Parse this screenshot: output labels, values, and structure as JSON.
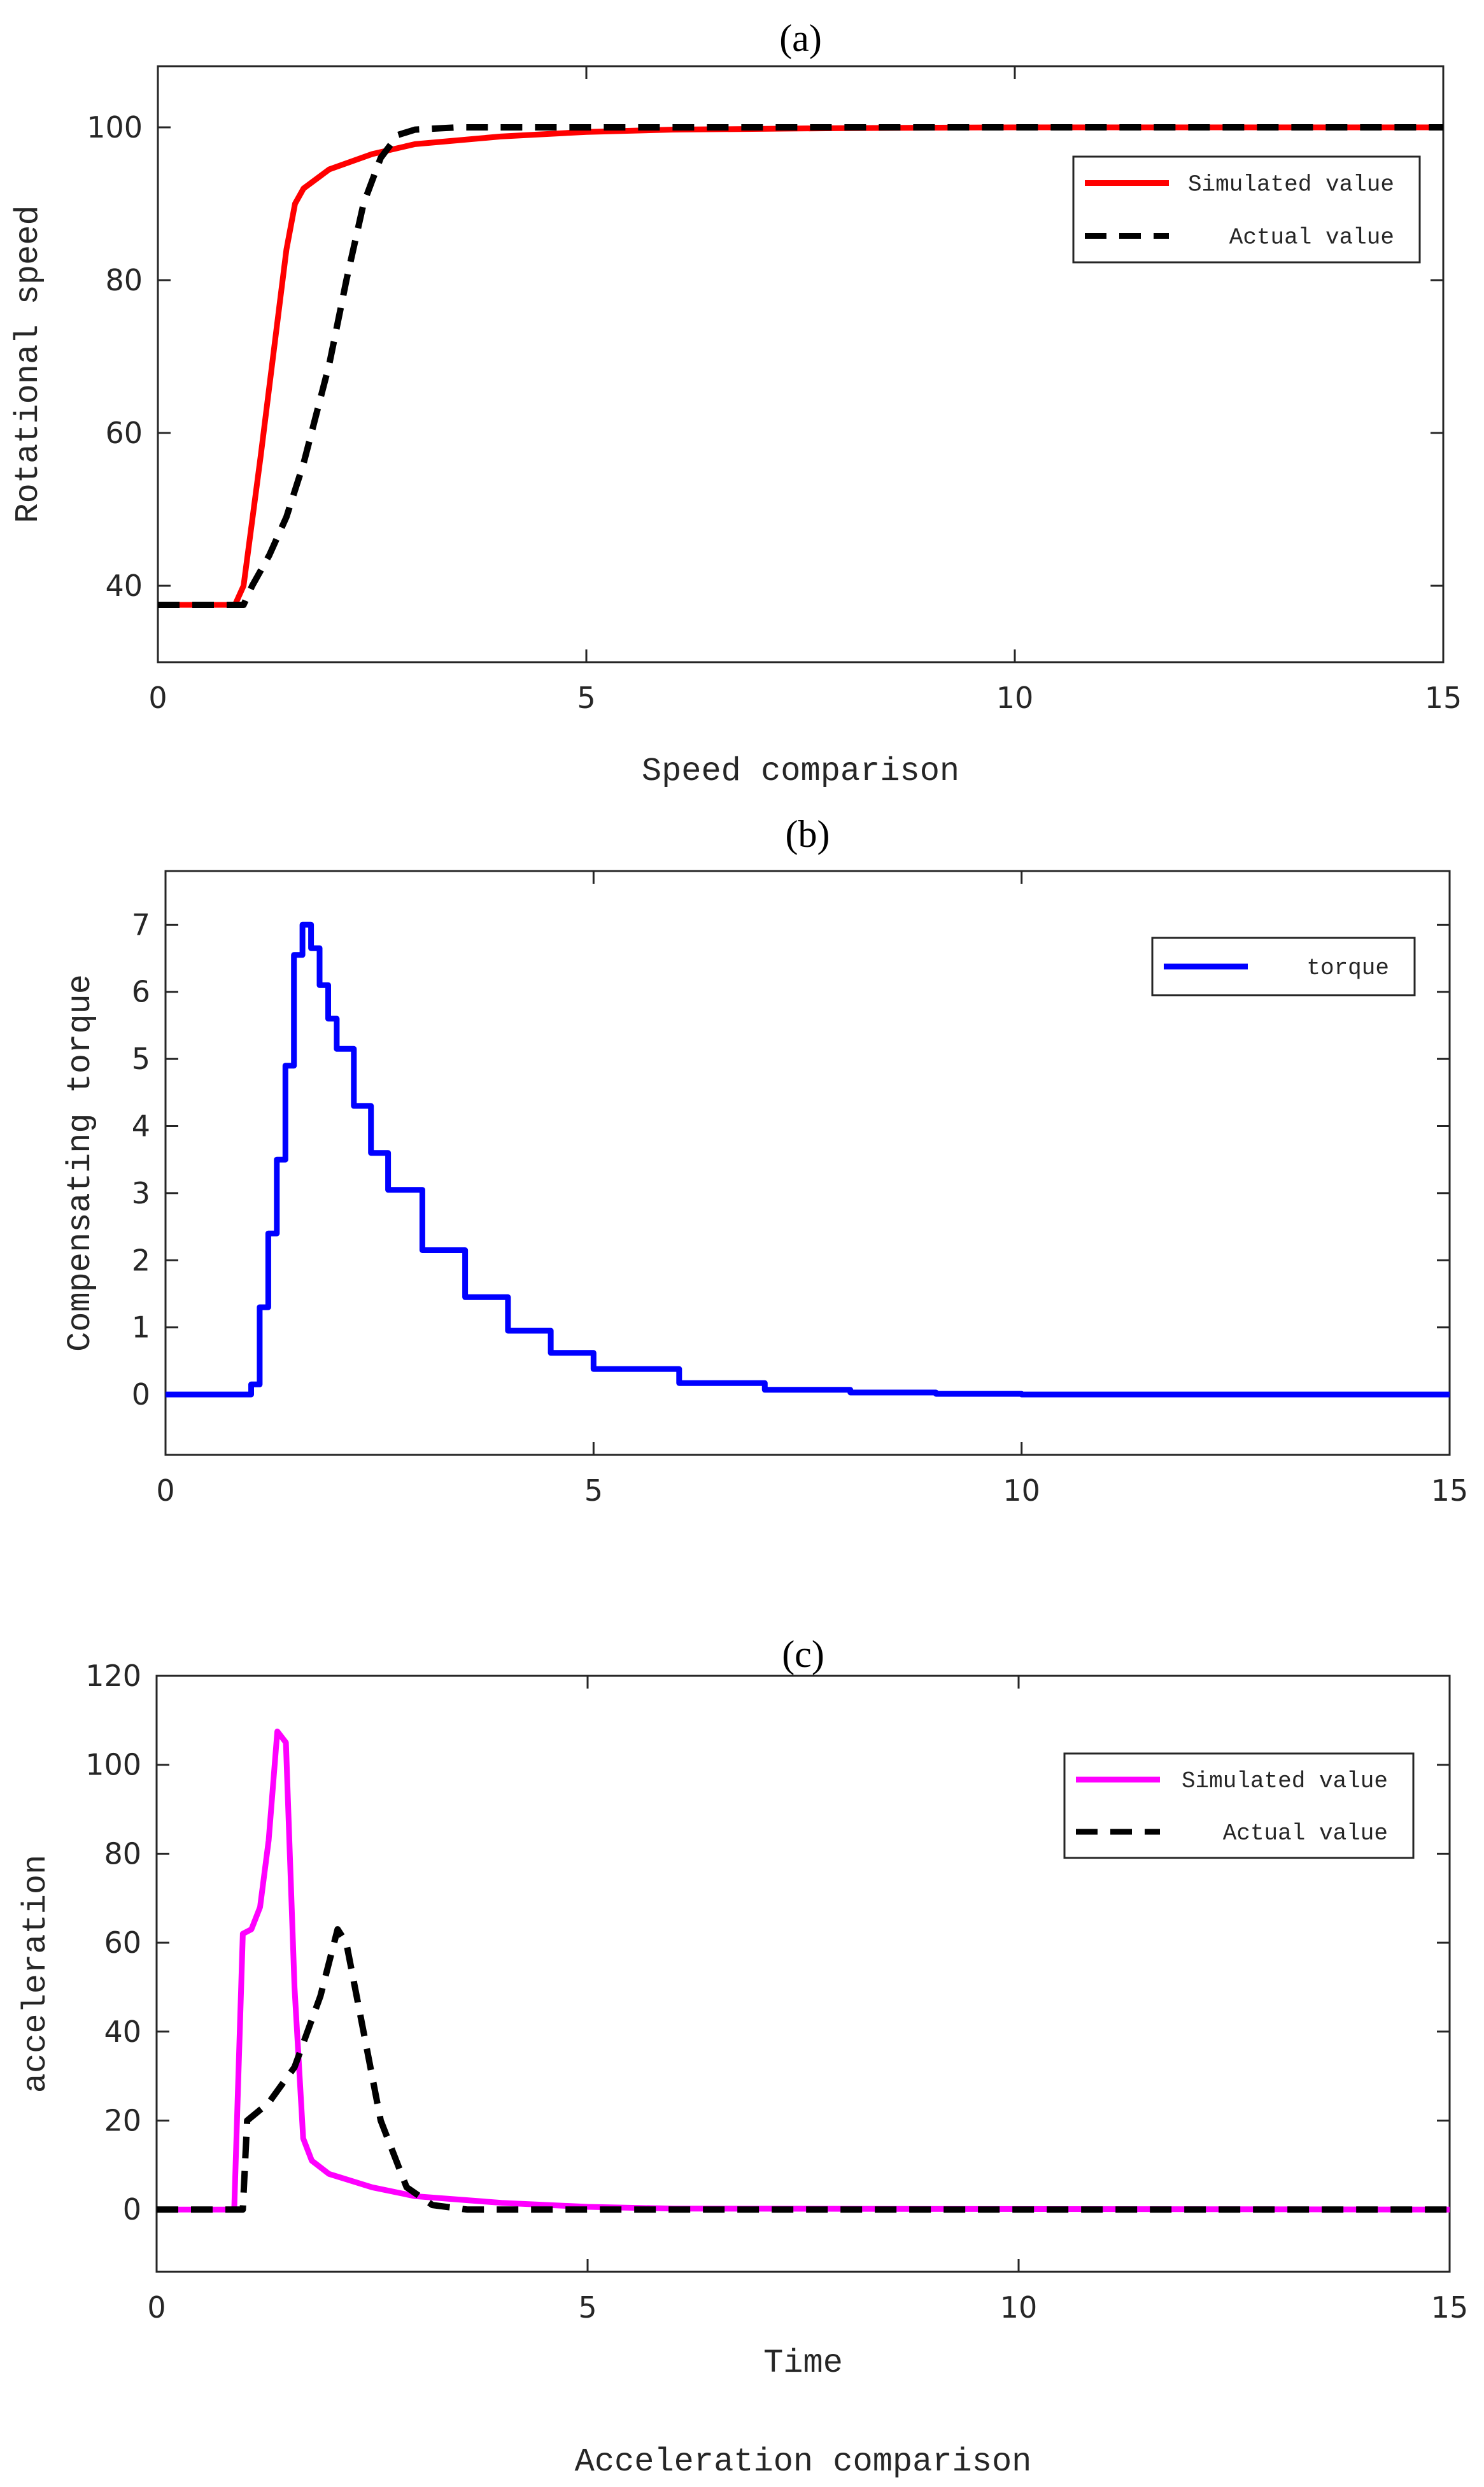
{
  "chart_data": [
    {
      "type": "line",
      "title": "(a)",
      "xlabel": "Speed comparison",
      "ylabel": "Rotational speed",
      "xlim": [
        0,
        15
      ],
      "ylim": [
        30,
        108
      ],
      "xticks": [
        0,
        5,
        10,
        15
      ],
      "yticks": [
        40,
        60,
        80,
        100
      ],
      "legend": "top-right",
      "series": [
        {
          "name": "Simulated value",
          "color": "#ff0000",
          "style": "solid",
          "x": [
            0,
            0.9,
            1.0,
            1.2,
            1.4,
            1.5,
            1.6,
            1.7,
            2.0,
            2.5,
            3.0,
            4.0,
            5.0,
            6.0,
            8.0,
            10.0,
            15.0
          ],
          "y": [
            37.5,
            37.5,
            40,
            57,
            75,
            84,
            90,
            92,
            94.5,
            96.5,
            97.8,
            98.8,
            99.4,
            99.7,
            99.9,
            100,
            100
          ]
        },
        {
          "name": "Actual value",
          "color": "#000000",
          "style": "dashed",
          "x": [
            0,
            1.0,
            1.1,
            1.3,
            1.5,
            1.7,
            2.0,
            2.2,
            2.4,
            2.6,
            2.8,
            3.0,
            3.5,
            15.0
          ],
          "y": [
            37.5,
            37.5,
            40,
            44,
            49,
            56,
            69,
            80,
            90,
            96,
            99,
            99.7,
            100,
            100
          ]
        }
      ]
    },
    {
      "type": "line",
      "title": "(b)",
      "xlabel": "",
      "ylabel": "Compensating torque",
      "xlim": [
        0,
        15
      ],
      "ylim": [
        -0.9,
        7.8
      ],
      "xticks": [
        0,
        5,
        10,
        15
      ],
      "yticks": [
        0,
        1,
        2,
        3,
        4,
        5,
        6,
        7
      ],
      "legend": "top-right",
      "series": [
        {
          "name": "torque",
          "color": "#0000ff",
          "style": "solid-step",
          "x": [
            0,
            0.5,
            1.0,
            1.1,
            1.2,
            1.3,
            1.4,
            1.5,
            1.6,
            1.7,
            1.8,
            1.9,
            2.0,
            2.2,
            2.4,
            2.6,
            3.0,
            3.5,
            4.0,
            4.5,
            5.0,
            6.0,
            7.0,
            8.0,
            9.0,
            10.0,
            15.0
          ],
          "y": [
            0,
            0,
            0.15,
            1.3,
            2.4,
            3.5,
            4.9,
            6.55,
            7.0,
            6.65,
            6.1,
            5.6,
            5.15,
            4.3,
            3.6,
            3.05,
            2.15,
            1.45,
            0.95,
            0.62,
            0.38,
            0.17,
            0.07,
            0.03,
            0.01,
            0,
            0
          ]
        }
      ]
    },
    {
      "type": "line",
      "title": "(c)",
      "xlabel": "Time",
      "caption": "Acceleration comparison",
      "ylabel": "acceleration",
      "xlim": [
        0,
        15
      ],
      "ylim": [
        -14,
        120
      ],
      "xticks": [
        0,
        5,
        10,
        15
      ],
      "yticks": [
        0,
        20,
        40,
        60,
        80,
        100,
        120
      ],
      "legend": "top-right",
      "series": [
        {
          "name": "Simulated value",
          "color": "#ff00ff",
          "style": "solid",
          "x": [
            0,
            0.9,
            1.0,
            1.1,
            1.2,
            1.3,
            1.4,
            1.5,
            1.6,
            1.7,
            1.8,
            2.0,
            2.5,
            3.0,
            4.0,
            5.0,
            6.0,
            15.0
          ],
          "y": [
            0,
            0,
            62,
            63,
            68,
            83,
            107.5,
            105,
            50,
            16,
            11,
            8,
            5,
            3,
            1.5,
            0.6,
            0.2,
            0
          ]
        },
        {
          "name": "Actual value",
          "color": "#000000",
          "style": "dashed",
          "x": [
            0,
            1.0,
            1.05,
            1.3,
            1.6,
            1.9,
            2.1,
            2.2,
            2.4,
            2.6,
            2.9,
            3.2,
            3.6,
            15.0
          ],
          "y": [
            0,
            0,
            20,
            24,
            32,
            48,
            63,
            60,
            40,
            20,
            5,
            1,
            0,
            0
          ]
        }
      ]
    }
  ]
}
